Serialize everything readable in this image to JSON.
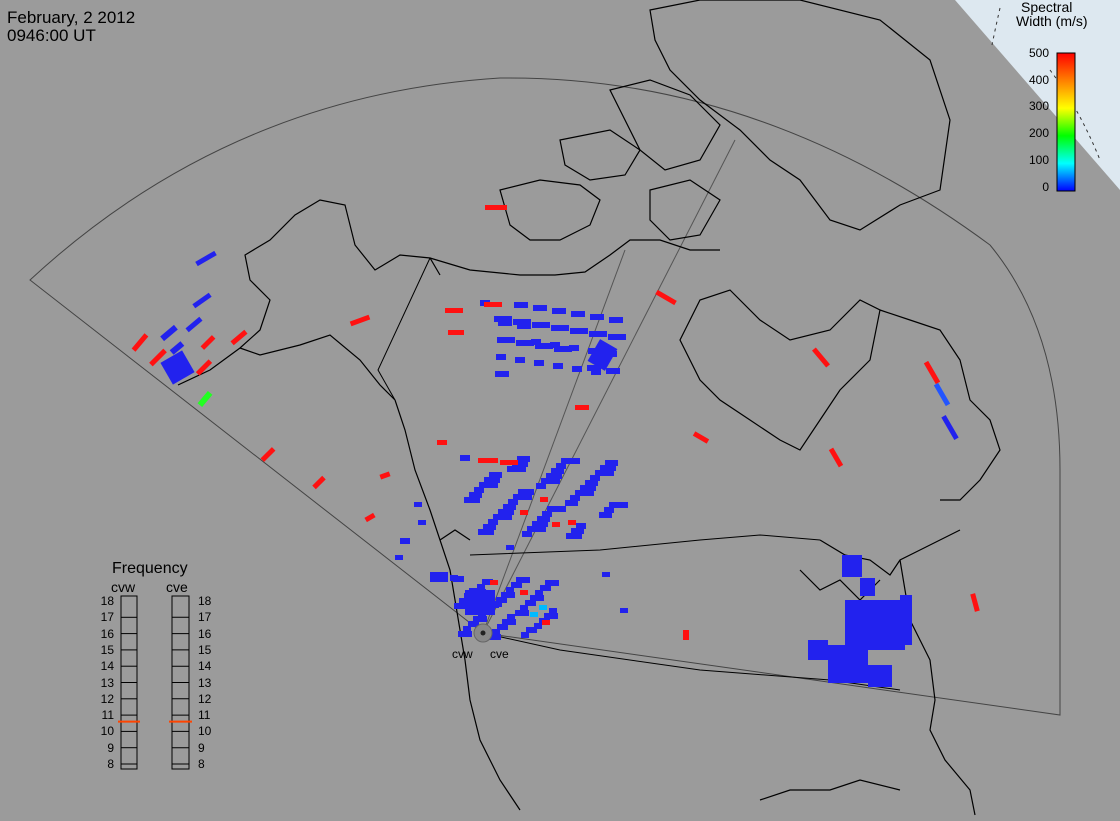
{
  "header": {
    "date": "February, 2 2012",
    "time": "0946:00 UT"
  },
  "color_scale": {
    "title_line1": "Spectral",
    "title_line2": "Width (m/s)",
    "ticks": [
      "500",
      "400",
      "300",
      "200",
      "100",
      "0"
    ],
    "colors": [
      "#ff0000",
      "#ff8000",
      "#ffff00",
      "#00ff00",
      "#00ffff",
      "#0000ff"
    ]
  },
  "frequency_panel": {
    "title": "Frequency",
    "radars": [
      "cvw",
      "cve"
    ],
    "levels": [
      "18",
      "17",
      "16",
      "15",
      "14",
      "13",
      "12",
      "11",
      "10",
      "9",
      "8"
    ],
    "cvw_value": 10.6,
    "cve_value": 10.6
  },
  "sites": {
    "cvw": "cvw",
    "cve": "cve"
  },
  "colors": {
    "background": "#9b9b9b",
    "low_width": "#2222ee",
    "high_width": "#ff1111",
    "mid_width": "#22ff22",
    "cyan_width": "#00bbff",
    "ocean_corner": "#dde8f0",
    "frequency_marker": "#ff4400"
  }
}
